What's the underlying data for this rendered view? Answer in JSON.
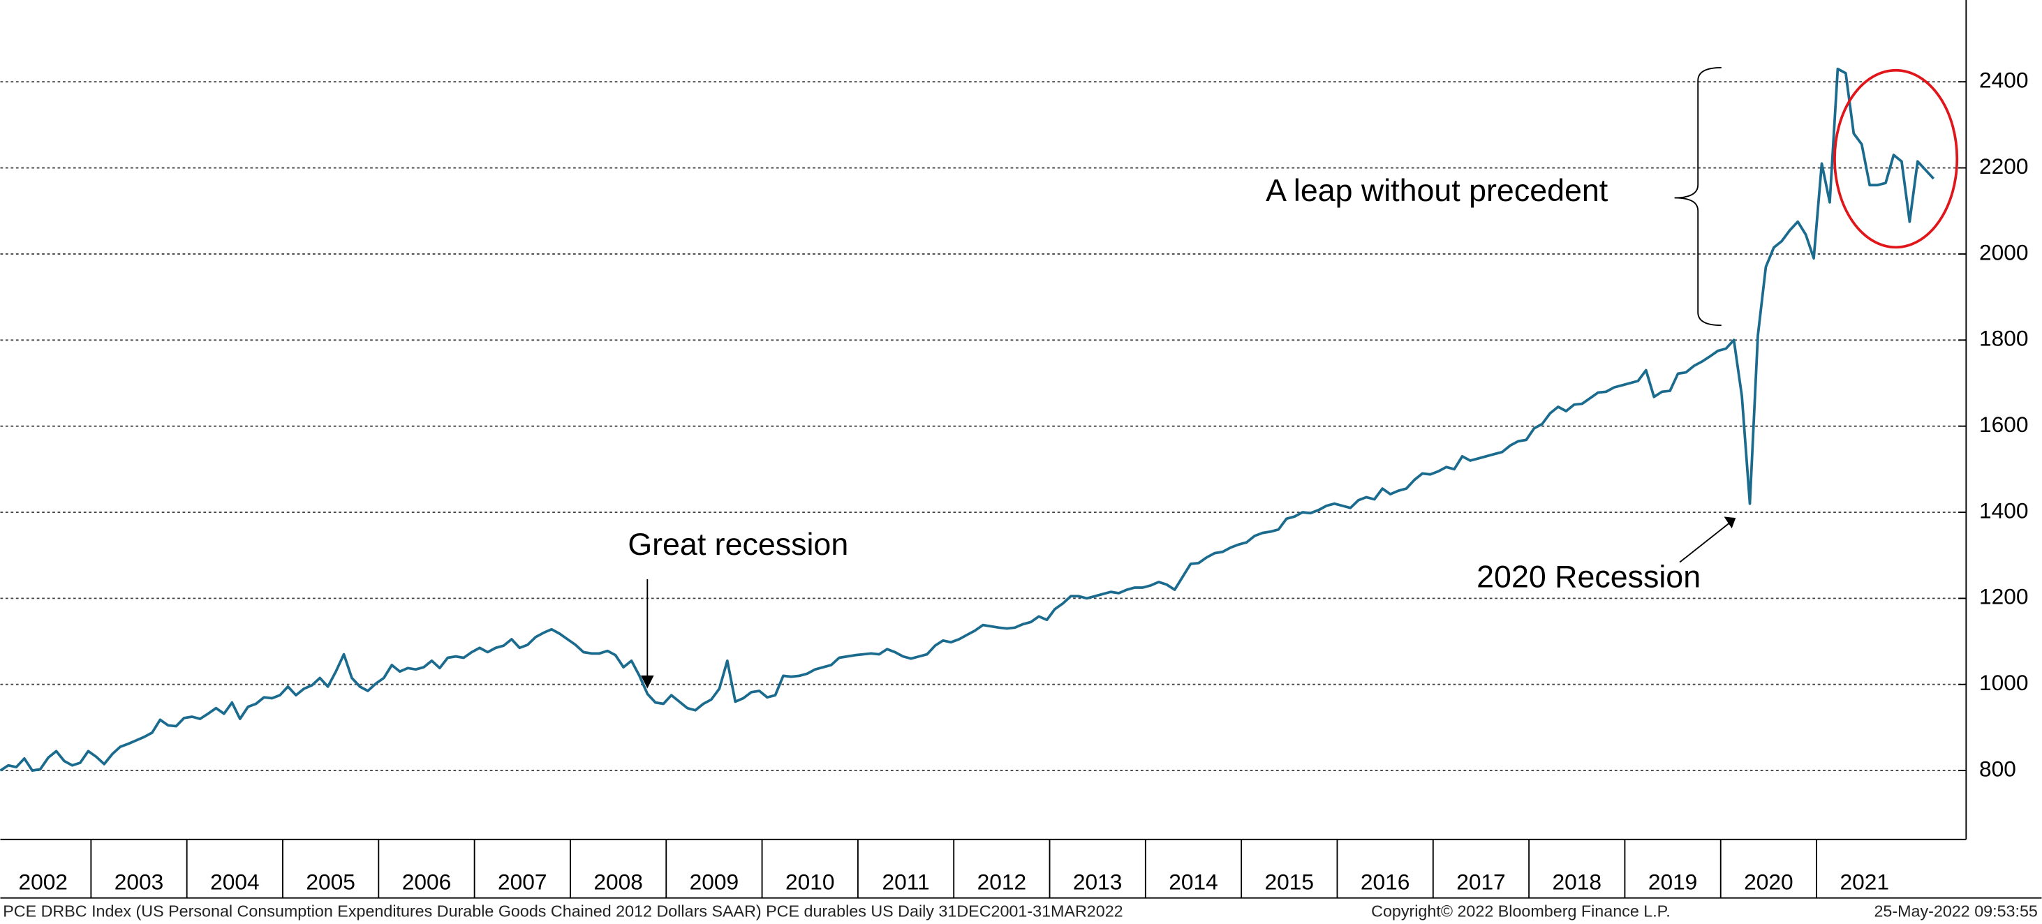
{
  "chart_data": {
    "type": "line",
    "series": [
      {
        "name": "PCE durables US",
        "color": "#1b6b8e",
        "values": [
          800,
          812,
          808,
          828,
          800,
          803,
          830,
          845,
          822,
          812,
          818,
          845,
          832,
          815,
          838,
          855,
          862,
          870,
          878,
          888,
          918,
          905,
          903,
          922,
          925,
          920,
          932,
          945,
          932,
          958,
          920,
          948,
          955,
          970,
          968,
          975,
          995,
          975,
          990,
          998,
          1015,
          995,
          1030,
          1070,
          1015,
          995,
          985,
          1002,
          1015,
          1045,
          1030,
          1038,
          1035,
          1040,
          1055,
          1038,
          1062,
          1065,
          1062,
          1075,
          1085,
          1075,
          1085,
          1090,
          1105,
          1085,
          1092,
          1110,
          1120,
          1128,
          1118,
          1105,
          1092,
          1075,
          1072,
          1072,
          1078,
          1068,
          1040,
          1055,
          1020,
          978,
          958,
          955,
          975,
          960,
          945,
          940,
          955,
          965,
          990,
          1055,
          960,
          968,
          982,
          985,
          970,
          975,
          1020,
          1018,
          1020,
          1025,
          1035,
          1040,
          1045,
          1062,
          1065,
          1068,
          1070,
          1072,
          1070,
          1082,
          1075,
          1065,
          1060,
          1065,
          1070,
          1090,
          1102,
          1098,
          1105,
          1115,
          1125,
          1138,
          1135,
          1132,
          1130,
          1132,
          1140,
          1145,
          1158,
          1150,
          1175,
          1188,
          1205,
          1205,
          1200,
          1205,
          1210,
          1215,
          1212,
          1220,
          1225,
          1225,
          1230,
          1238,
          1232,
          1220,
          1250,
          1280,
          1282,
          1295,
          1305,
          1308,
          1318,
          1325,
          1330,
          1345,
          1352,
          1355,
          1360,
          1385,
          1390,
          1400,
          1398,
          1405,
          1415,
          1420,
          1415,
          1410,
          1428,
          1435,
          1430,
          1455,
          1442,
          1450,
          1455,
          1475,
          1490,
          1488,
          1495,
          1505,
          1500,
          1530,
          1520,
          1525,
          1530,
          1535,
          1540,
          1555,
          1565,
          1568,
          1595,
          1605,
          1630,
          1645,
          1635,
          1650,
          1652,
          1665,
          1678,
          1680,
          1690,
          1695,
          1700,
          1705,
          1730,
          1668,
          1680,
          1682,
          1722,
          1725,
          1740,
          1750,
          1762,
          1775,
          1780,
          1800,
          1670,
          1420,
          1810,
          1970,
          2015,
          2030,
          2055,
          2075,
          2045,
          1990,
          2210,
          2120,
          2430,
          2420,
          2280,
          2255,
          2160,
          2160,
          2165,
          2230,
          2215,
          2075,
          2215,
          2195,
          2175
        ]
      }
    ],
    "xticks": [
      2002,
      2003,
      2004,
      2005,
      2006,
      2007,
      2008,
      2009,
      2010,
      2011,
      2012,
      2013,
      2014,
      2015,
      2016,
      2017,
      2018,
      2019,
      2020,
      2021
    ],
    "ylim": [
      640,
      2590
    ],
    "yticks": [
      800,
      1000,
      1200,
      1400,
      1600,
      1800,
      2000,
      2200,
      2400
    ],
    "grid": true,
    "annotations": [
      "Great recession",
      "2020 Recession",
      "A leap without precedent"
    ],
    "source": "PCE DRBC Index (US Personal Consumption Expenditures Durable Goods Chained 2012 Dollars SAAR) PCE durables US  Daily 31DEC2001-31MAR2022",
    "copyright": "Copyright© 2022 Bloomberg Finance L.P.",
    "timestamp": "25-May-2022 09:53:55"
  }
}
